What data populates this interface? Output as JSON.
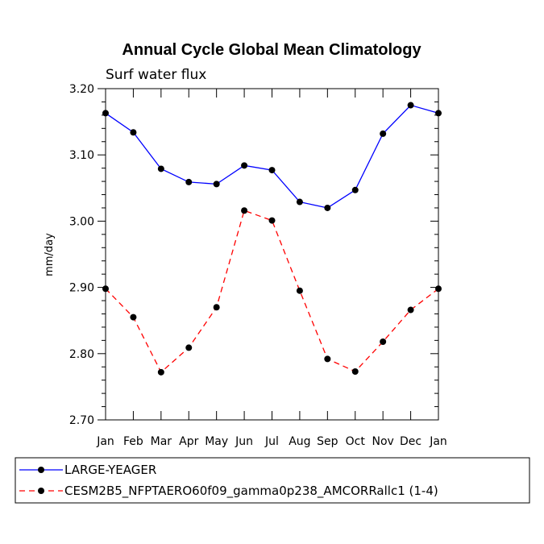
{
  "chart_data": {
    "type": "line",
    "title": "Annual Cycle Global Mean Climatology",
    "subtitle": "Surf water flux",
    "xlabel": "",
    "ylabel": "mm/day",
    "categories": [
      "Jan",
      "Feb",
      "Mar",
      "Apr",
      "May",
      "Jun",
      "Jul",
      "Aug",
      "Sep",
      "Oct",
      "Nov",
      "Dec",
      "Jan"
    ],
    "ylim": [
      2.7,
      3.2
    ],
    "yticks": [
      "2.70",
      "2.80",
      "2.90",
      "3.00",
      "3.10",
      "3.20"
    ],
    "ytick_values": [
      2.7,
      2.8,
      2.9,
      3.0,
      3.1,
      3.2
    ],
    "grid": false,
    "legend_position": "bottom",
    "series": [
      {
        "name": "LARGE-YEAGER",
        "color": "#0000ff",
        "style": "solid",
        "values": [
          3.163,
          3.134,
          3.079,
          3.059,
          3.056,
          3.084,
          3.077,
          3.029,
          3.02,
          3.047,
          3.132,
          3.175,
          3.163
        ]
      },
      {
        "name": "CESM2B5_NFPTAERO60f09_gamma0p238_AMCORRallc1 (1-4)",
        "color": "#ff0000",
        "style": "dashed",
        "values": [
          2.898,
          2.855,
          2.772,
          2.809,
          2.87,
          3.016,
          3.001,
          2.895,
          2.792,
          2.773,
          2.818,
          2.866,
          2.898
        ]
      }
    ]
  }
}
